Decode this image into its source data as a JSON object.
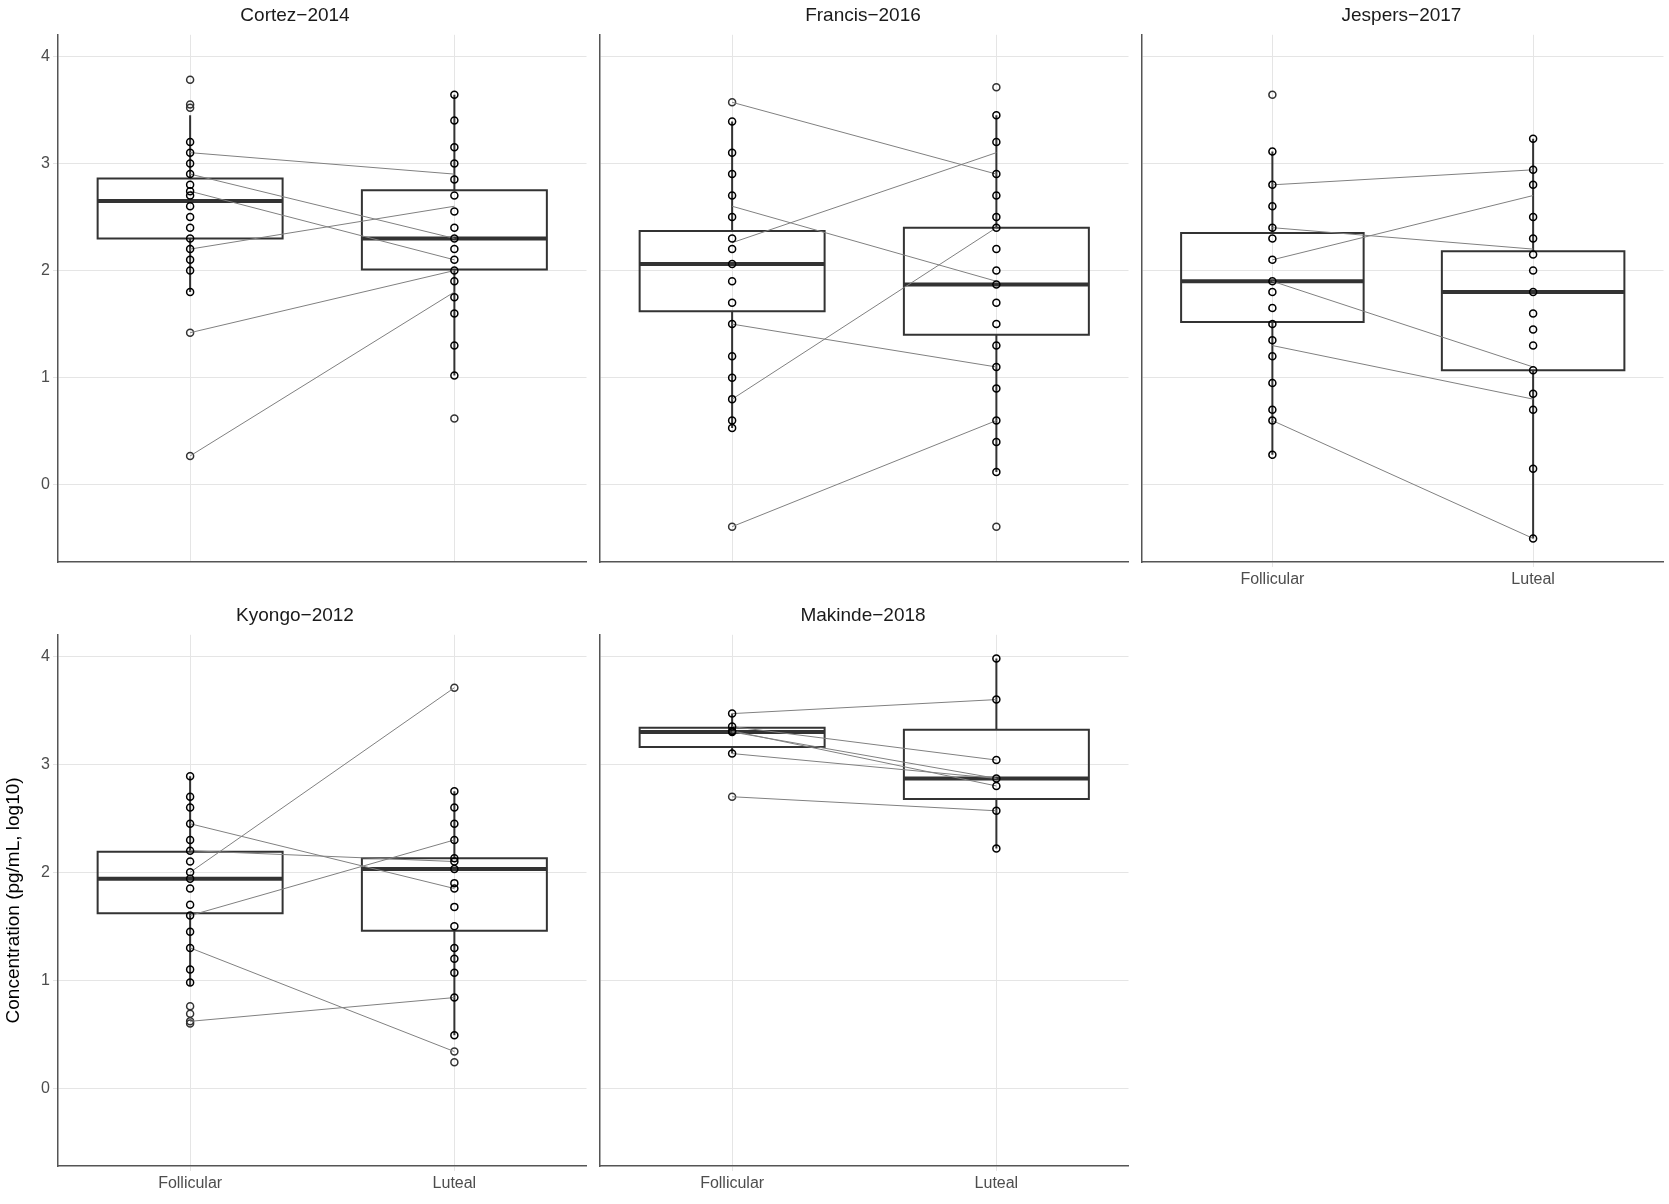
{
  "chart_data": [
    {
      "type": "box",
      "title": "Cortez−2014",
      "categories": [
        "Follicular",
        "Luteal"
      ],
      "ylim": [
        -0.72,
        4.2
      ],
      "yticks": [
        0,
        1,
        2,
        3,
        4
      ],
      "grid": true,
      "tick_labels": "y",
      "color": "#333333",
      "boxes": [
        {
          "low": 1.8,
          "q1": 2.3,
          "median": 2.65,
          "q3": 2.86,
          "high": 3.45,
          "outliers": [
            3.78,
            3.55,
            3.52,
            1.42,
            0.27
          ]
        },
        {
          "low": 1.02,
          "q1": 2.01,
          "median": 2.3,
          "q3": 2.75,
          "high": 3.64,
          "outliers": [
            0.62
          ]
        }
      ],
      "series": [
        {
          "type": "scatter",
          "marker": "circle",
          "color": "#000000",
          "x": [
            "Follicular",
            "Follicular",
            "Follicular",
            "Follicular",
            "Follicular",
            "Follicular",
            "Follicular",
            "Follicular",
            "Follicular",
            "Follicular",
            "Follicular",
            "Follicular",
            "Follicular",
            "Follicular",
            "Follicular"
          ],
          "values": [
            3.2,
            3.1,
            3.0,
            2.9,
            2.8,
            2.74,
            2.7,
            2.6,
            2.5,
            2.4,
            2.3,
            2.2,
            2.1,
            2.0,
            1.8
          ]
        },
        {
          "type": "scatter",
          "marker": "circle",
          "color": "#000000",
          "x": [
            "Luteal",
            "Luteal",
            "Luteal",
            "Luteal",
            "Luteal",
            "Luteal",
            "Luteal",
            "Luteal",
            "Luteal",
            "Luteal",
            "Luteal",
            "Luteal",
            "Luteal",
            "Luteal",
            "Luteal",
            "Luteal",
            "Luteal"
          ],
          "values": [
            3.64,
            3.4,
            3.15,
            3.0,
            2.85,
            2.7,
            2.55,
            2.4,
            2.3,
            2.2,
            2.1,
            2.0,
            1.9,
            1.75,
            1.6,
            1.3,
            1.02
          ]
        },
        {
          "type": "line",
          "color": "#808080",
          "x": [
            "Follicular",
            "Luteal"
          ],
          "values": [
            2.74,
            2.1
          ]
        },
        {
          "type": "line",
          "color": "#808080",
          "x": [
            "Follicular",
            "Luteal"
          ],
          "values": [
            2.9,
            2.3
          ]
        },
        {
          "type": "line",
          "color": "#808080",
          "x": [
            "Follicular",
            "Luteal"
          ],
          "values": [
            1.42,
            2.0
          ]
        },
        {
          "type": "line",
          "color": "#808080",
          "x": [
            "Follicular",
            "Luteal"
          ],
          "values": [
            0.27,
            1.8
          ]
        },
        {
          "type": "line",
          "color": "#808080",
          "x": [
            "Follicular",
            "Luteal"
          ],
          "values": [
            3.1,
            2.9
          ]
        },
        {
          "type": "line",
          "color": "#808080",
          "x": [
            "Follicular",
            "Luteal"
          ],
          "values": [
            2.2,
            2.6
          ]
        }
      ]
    },
    {
      "type": "box",
      "title": "Francis−2016",
      "categories": [
        "Follicular",
        "Luteal"
      ],
      "ylim": [
        -0.72,
        4.2
      ],
      "yticks": [
        0,
        1,
        2,
        3,
        4
      ],
      "grid": true,
      "tick_labels": false,
      "color": "#333333",
      "boxes": [
        {
          "low": 0.53,
          "q1": 1.62,
          "median": 2.06,
          "q3": 2.37,
          "high": 3.39,
          "outliers": [
            3.57,
            -0.39
          ]
        },
        {
          "low": 0.12,
          "q1": 1.4,
          "median": 1.87,
          "q3": 2.4,
          "high": 3.45,
          "outliers": [
            3.71,
            -0.39
          ]
        }
      ],
      "series": [
        {
          "type": "scatter",
          "marker": "circle",
          "color": "#000000",
          "x": [
            "Follicular",
            "Follicular",
            "Follicular",
            "Follicular",
            "Follicular",
            "Follicular",
            "Follicular",
            "Follicular",
            "Follicular",
            "Follicular",
            "Follicular",
            "Follicular",
            "Follicular",
            "Follicular",
            "Follicular",
            "Follicular"
          ],
          "values": [
            3.39,
            3.1,
            2.9,
            2.7,
            2.5,
            2.3,
            2.2,
            2.06,
            1.9,
            1.7,
            1.5,
            1.2,
            1.0,
            0.8,
            0.6,
            0.53
          ]
        },
        {
          "type": "scatter",
          "marker": "circle",
          "color": "#000000",
          "x": [
            "Luteal",
            "Luteal",
            "Luteal",
            "Luteal",
            "Luteal",
            "Luteal",
            "Luteal",
            "Luteal",
            "Luteal",
            "Luteal",
            "Luteal",
            "Luteal",
            "Luteal",
            "Luteal",
            "Luteal",
            "Luteal",
            "Luteal"
          ],
          "values": [
            3.45,
            3.2,
            2.9,
            2.7,
            2.5,
            2.4,
            2.2,
            2.0,
            1.87,
            1.7,
            1.5,
            1.3,
            1.1,
            0.9,
            0.6,
            0.4,
            0.12
          ]
        },
        {
          "type": "line",
          "color": "#808080",
          "x": [
            "Follicular",
            "Luteal"
          ],
          "values": [
            3.57,
            2.9
          ]
        },
        {
          "type": "line",
          "color": "#808080",
          "x": [
            "Follicular",
            "Luteal"
          ],
          "values": [
            2.26,
            3.1
          ]
        },
        {
          "type": "line",
          "color": "#808080",
          "x": [
            "Follicular",
            "Luteal"
          ],
          "values": [
            0.8,
            2.4
          ]
        },
        {
          "type": "line",
          "color": "#808080",
          "x": [
            "Follicular",
            "Luteal"
          ],
          "values": [
            -0.39,
            0.6
          ]
        },
        {
          "type": "line",
          "color": "#808080",
          "x": [
            "Follicular",
            "Luteal"
          ],
          "values": [
            1.5,
            1.1
          ]
        },
        {
          "type": "line",
          "color": "#808080",
          "x": [
            "Follicular",
            "Luteal"
          ],
          "values": [
            2.6,
            1.9
          ]
        }
      ]
    },
    {
      "type": "box",
      "title": "Jespers−2017",
      "categories": [
        "Follicular",
        "Luteal"
      ],
      "ylim": [
        -0.72,
        4.2
      ],
      "yticks": [
        0,
        1,
        2,
        3,
        4
      ],
      "grid": true,
      "tick_labels": "x",
      "color": "#333333",
      "boxes": [
        {
          "low": 0.28,
          "q1": 1.52,
          "median": 1.9,
          "q3": 2.35,
          "high": 3.11,
          "outliers": [
            3.64
          ]
        },
        {
          "low": -0.5,
          "q1": 1.07,
          "median": 1.8,
          "q3": 2.18,
          "high": 3.23
        }
      ],
      "series": [
        {
          "type": "scatter",
          "marker": "circle",
          "color": "#000000",
          "x": [
            "Follicular",
            "Follicular",
            "Follicular",
            "Follicular",
            "Follicular",
            "Follicular",
            "Follicular",
            "Follicular",
            "Follicular",
            "Follicular",
            "Follicular",
            "Follicular",
            "Follicular",
            "Follicular",
            "Follicular",
            "Follicular"
          ],
          "values": [
            3.11,
            2.8,
            2.6,
            2.4,
            2.3,
            2.1,
            1.9,
            1.8,
            1.65,
            1.5,
            1.35,
            1.2,
            0.95,
            0.7,
            0.6,
            0.28
          ]
        },
        {
          "type": "scatter",
          "marker": "circle",
          "color": "#000000",
          "x": [
            "Luteal",
            "Luteal",
            "Luteal",
            "Luteal",
            "Luteal",
            "Luteal",
            "Luteal",
            "Luteal",
            "Luteal",
            "Luteal",
            "Luteal",
            "Luteal",
            "Luteal",
            "Luteal",
            "Luteal",
            "Luteal"
          ],
          "values": [
            3.23,
            2.94,
            2.8,
            2.5,
            2.3,
            2.15,
            2.0,
            1.8,
            1.6,
            1.45,
            1.3,
            1.07,
            0.85,
            0.7,
            0.15,
            -0.5
          ]
        },
        {
          "type": "line",
          "color": "#808080",
          "x": [
            "Follicular",
            "Luteal"
          ],
          "values": [
            2.8,
            2.94
          ]
        },
        {
          "type": "line",
          "color": "#808080",
          "x": [
            "Follicular",
            "Luteal"
          ],
          "values": [
            2.4,
            2.2
          ]
        },
        {
          "type": "line",
          "color": "#808080",
          "x": [
            "Follicular",
            "Luteal"
          ],
          "values": [
            1.3,
            0.8
          ]
        },
        {
          "type": "line",
          "color": "#808080",
          "x": [
            "Follicular",
            "Luteal"
          ],
          "values": [
            0.6,
            -0.5
          ]
        },
        {
          "type": "line",
          "color": "#808080",
          "x": [
            "Follicular",
            "Luteal"
          ],
          "values": [
            2.1,
            2.7
          ]
        },
        {
          "type": "line",
          "color": "#808080",
          "x": [
            "Follicular",
            "Luteal"
          ],
          "values": [
            1.9,
            1.1
          ]
        }
      ]
    },
    {
      "type": "box",
      "title": "Kyongo−2012",
      "ylabel": "Concentration (pg/mL, log10)",
      "categories": [
        "Follicular",
        "Luteal"
      ],
      "ylim": [
        -0.72,
        4.2
      ],
      "yticks": [
        0,
        1,
        2,
        3,
        4
      ],
      "grid": true,
      "color": "#333333",
      "boxes": [
        {
          "low": 0.95,
          "q1": 1.62,
          "median": 1.94,
          "q3": 2.19,
          "high": 2.89,
          "outliers": [
            0.76,
            0.69,
            0.62,
            0.6
          ]
        },
        {
          "low": 0.49,
          "q1": 1.46,
          "median": 2.03,
          "q3": 2.13,
          "high": 2.75,
          "outliers": [
            3.71,
            0.34,
            0.24
          ]
        }
      ],
      "series": [
        {
          "type": "scatter",
          "marker": "circle",
          "color": "#000000",
          "x": [
            "Follicular",
            "Follicular",
            "Follicular",
            "Follicular",
            "Follicular",
            "Follicular",
            "Follicular",
            "Follicular",
            "Follicular",
            "Follicular",
            "Follicular",
            "Follicular",
            "Follicular",
            "Follicular",
            "Follicular",
            "Follicular"
          ],
          "values": [
            2.89,
            2.7,
            2.6,
            2.45,
            2.3,
            2.2,
            2.1,
            2.0,
            1.94,
            1.85,
            1.7,
            1.6,
            1.45,
            1.3,
            1.1,
            0.98
          ]
        },
        {
          "type": "scatter",
          "marker": "circle",
          "color": "#000000",
          "x": [
            "Luteal",
            "Luteal",
            "Luteal",
            "Luteal",
            "Luteal",
            "Luteal",
            "Luteal",
            "Luteal",
            "Luteal",
            "Luteal",
            "Luteal",
            "Luteal",
            "Luteal",
            "Luteal",
            "Luteal",
            "Luteal"
          ],
          "values": [
            2.75,
            2.6,
            2.45,
            2.3,
            2.13,
            2.1,
            2.03,
            1.9,
            1.85,
            1.68,
            1.5,
            1.3,
            1.2,
            1.07,
            0.84,
            0.49
          ]
        },
        {
          "type": "line",
          "color": "#808080",
          "x": [
            "Follicular",
            "Luteal"
          ],
          "values": [
            2.0,
            3.71
          ]
        },
        {
          "type": "line",
          "color": "#808080",
          "x": [
            "Follicular",
            "Luteal"
          ],
          "values": [
            0.62,
            0.84
          ]
        },
        {
          "type": "line",
          "color": "#808080",
          "x": [
            "Follicular",
            "Luteal"
          ],
          "values": [
            2.2,
            2.1
          ]
        },
        {
          "type": "line",
          "color": "#808080",
          "x": [
            "Follicular",
            "Luteal"
          ],
          "values": [
            1.3,
            0.34
          ]
        },
        {
          "type": "line",
          "color": "#808080",
          "x": [
            "Follicular",
            "Luteal"
          ],
          "values": [
            1.6,
            2.3
          ]
        },
        {
          "type": "line",
          "color": "#808080",
          "x": [
            "Follicular",
            "Luteal"
          ],
          "values": [
            2.45,
            1.85
          ]
        }
      ]
    },
    {
      "type": "box",
      "title": "Makinde−2018",
      "categories": [
        "Follicular",
        "Luteal"
      ],
      "ylim": [
        -0.72,
        4.2
      ],
      "yticks": [
        0,
        1,
        2,
        3,
        4
      ],
      "grid": true,
      "tick_labels": "x",
      "color": "#333333",
      "boxes": [
        {
          "low": 3.1,
          "q1": 3.16,
          "median": 3.3,
          "q3": 3.34,
          "high": 3.47,
          "outliers": [
            2.7
          ]
        },
        {
          "low": 2.22,
          "q1": 2.68,
          "median": 2.87,
          "q3": 3.32,
          "high": 3.98
        }
      ],
      "series": [
        {
          "type": "scatter",
          "marker": "circle",
          "color": "#000000",
          "x": [
            "Follicular",
            "Follicular",
            "Follicular",
            "Follicular",
            "Follicular"
          ],
          "values": [
            3.47,
            3.35,
            3.31,
            3.3,
            3.1
          ]
        },
        {
          "type": "scatter",
          "marker": "circle",
          "color": "#000000",
          "x": [
            "Luteal",
            "Luteal",
            "Luteal",
            "Luteal",
            "Luteal",
            "Luteal",
            "Luteal"
          ],
          "values": [
            3.98,
            3.6,
            3.04,
            2.87,
            2.8,
            2.57,
            2.22
          ]
        },
        {
          "type": "line",
          "color": "#808080",
          "x": [
            "Follicular",
            "Luteal"
          ],
          "values": [
            3.47,
            3.6
          ]
        },
        {
          "type": "line",
          "color": "#808080",
          "x": [
            "Follicular",
            "Luteal"
          ],
          "values": [
            3.35,
            3.04
          ]
        },
        {
          "type": "line",
          "color": "#808080",
          "x": [
            "Follicular",
            "Luteal"
          ],
          "values": [
            3.31,
            2.8
          ]
        },
        {
          "type": "line",
          "color": "#808080",
          "x": [
            "Follicular",
            "Luteal"
          ],
          "values": [
            3.3,
            2.87
          ]
        },
        {
          "type": "line",
          "color": "#808080",
          "x": [
            "Follicular",
            "Luteal"
          ],
          "values": [
            3.1,
            2.87
          ]
        },
        {
          "type": "line",
          "color": "#808080",
          "x": [
            "Follicular",
            "Luteal"
          ],
          "values": [
            2.7,
            2.57
          ]
        }
      ]
    }
  ]
}
